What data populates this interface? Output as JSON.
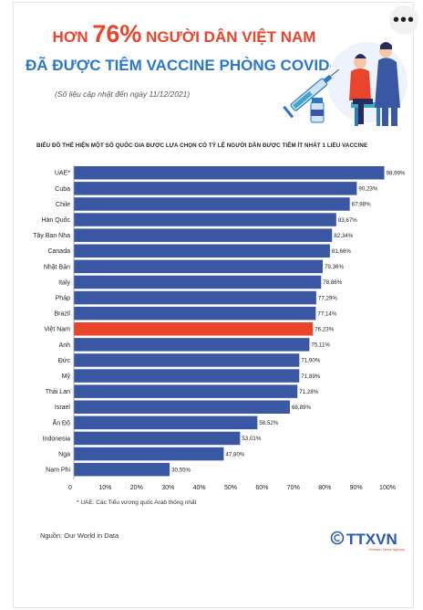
{
  "header": {
    "title_prefix": "HƠN",
    "title_percent": "76%",
    "title_suffix": "NGƯỜI DÂN VIỆT NAM",
    "title_line2": "ĐÃ ĐƯỢC TIÊM VACCINE PHÒNG COVID-19",
    "updated_note": "(Số liệu cập nhật đến ngày 11/12/2021)"
  },
  "more_button": {
    "label": "•••"
  },
  "chart_data": {
    "type": "bar",
    "orientation": "horizontal",
    "title": "BIỂU ĐỒ THỂ HIỆN MỘT SỐ QUỐC GIA ĐƯỢC LỰA CHỌN CÓ TỶ LỆ NGƯỜI DÂN ĐƯỢC TIÊM  ÍT NHẤT 1 LIỀU VACCINE",
    "categories": [
      "UAE*",
      "Cuba",
      "Chile",
      "Hàn Quốc",
      "Tây Ban Nha",
      "Canada",
      "Nhật Bản",
      "Italy",
      "Pháp",
      "Brazil",
      "Việt Nam",
      "Anh",
      "Đức",
      "Mỹ",
      "Thái Lan",
      "Israel",
      "Ấn Độ",
      "Indonesia",
      "Nga",
      "Nam Phi"
    ],
    "values": [
      98.99,
      90.23,
      87.98,
      83.67,
      82.34,
      81.66,
      79.36,
      78.86,
      77.29,
      77.14,
      76.23,
      75.11,
      71.9,
      71.89,
      71.28,
      68.89,
      58.52,
      53.01,
      47.8,
      30.55
    ],
    "value_labels": [
      "98,99%",
      "90,23%",
      "87,98%",
      "83,67%",
      "82,34%",
      "81,66%",
      "79,36%",
      "78,86%",
      "77,29%",
      "77,14%",
      "76,23%",
      "75,11%",
      "71,90%",
      "71,89%",
      "71,28%",
      "68,89%",
      "58,52%",
      "53,01%",
      "47,80%",
      "30,55%"
    ],
    "x_ticks": [
      "0",
      "10%",
      "20%",
      "30%",
      "40%",
      "50%",
      "60%",
      "70%",
      "80%",
      "90%",
      "100%"
    ],
    "xlim": [
      0,
      100
    ],
    "highlight": "Việt Nam",
    "colors": {
      "bar": "#3a57a4",
      "highlight": "#e8452a"
    },
    "grid": false
  },
  "footnote": "* UAE: Các Tiểu vương quốc Arab thống nhất",
  "source": "Nguồn: Our World in Data",
  "logo": {
    "text": "TTXVN",
    "subtitle": "Vietnam News Agency",
    "copyright": "©"
  },
  "illustration": {
    "icon": "vaccination-illustration"
  }
}
